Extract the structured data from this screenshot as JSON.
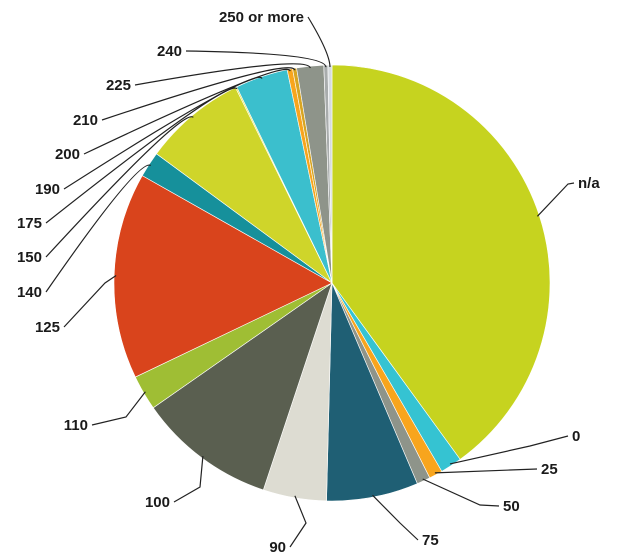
{
  "chart_data": {
    "type": "pie",
    "title": "",
    "categories": [
      "n/a",
      "0",
      "25",
      "50",
      "75",
      "90",
      "100",
      "110",
      "125",
      "140",
      "150",
      "175",
      "190",
      "200",
      "210",
      "225",
      "240",
      "250 or more"
    ],
    "values": [
      40.0,
      1.6,
      1.0,
      1.0,
      6.8,
      4.7,
      10.2,
      2.6,
      15.3,
      1.9,
      7.6,
      0.1,
      3.9,
      0.4,
      0.3,
      2.0,
      0.3,
      0.3
    ],
    "colors": [
      "#c6d31f",
      "#35c3d2",
      "#f8a51d",
      "#8e948a",
      "#1f5f74",
      "#dddcd2",
      "#5a5f50",
      "#9fbe34",
      "#d9441c",
      "#16909b",
      "#cfd52a",
      "#e7e045",
      "#3bbfcd",
      "#f8a51d",
      "#d8a522",
      "#8e948a",
      "#a8acac",
      "#d6dbde"
    ],
    "legend": "none"
  }
}
